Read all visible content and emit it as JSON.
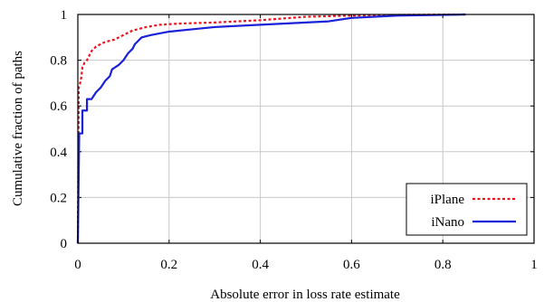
{
  "chart_data": {
    "type": "line",
    "title": "",
    "xlabel": "Absolute error in loss rate estimate",
    "ylabel": "Cumulative fraction of paths",
    "xlim": [
      0,
      1
    ],
    "ylim": [
      0,
      1
    ],
    "x_ticks": [
      "0",
      "0.2",
      "0.4",
      "0.6",
      "0.8",
      "1"
    ],
    "y_ticks": [
      "0",
      "0.2",
      "0.4",
      "0.6",
      "0.8",
      "1"
    ],
    "grid": true,
    "legend_position": "bottom-right",
    "series": [
      {
        "name": "iPlane",
        "color": "#e8141e",
        "style": "dashed",
        "points": [
          [
            0,
            0
          ],
          [
            0.002,
            0.68
          ],
          [
            0.005,
            0.7
          ],
          [
            0.008,
            0.73
          ],
          [
            0.01,
            0.77
          ],
          [
            0.015,
            0.79
          ],
          [
            0.02,
            0.8
          ],
          [
            0.025,
            0.82
          ],
          [
            0.03,
            0.84
          ],
          [
            0.04,
            0.86
          ],
          [
            0.05,
            0.87
          ],
          [
            0.06,
            0.88
          ],
          [
            0.08,
            0.89
          ],
          [
            0.1,
            0.91
          ],
          [
            0.12,
            0.93
          ],
          [
            0.15,
            0.945
          ],
          [
            0.18,
            0.955
          ],
          [
            0.22,
            0.96
          ],
          [
            0.3,
            0.965
          ],
          [
            0.4,
            0.975
          ],
          [
            0.5,
            0.99
          ],
          [
            0.6,
            0.995
          ],
          [
            0.7,
            0.998
          ],
          [
            0.85,
            1.0
          ]
        ]
      },
      {
        "name": "iNano",
        "color": "#1a21d8",
        "style": "solid",
        "points": [
          [
            0,
            0
          ],
          [
            0.003,
            0.48
          ],
          [
            0.01,
            0.48
          ],
          [
            0.01,
            0.58
          ],
          [
            0.02,
            0.58
          ],
          [
            0.02,
            0.63
          ],
          [
            0.03,
            0.63
          ],
          [
            0.04,
            0.66
          ],
          [
            0.05,
            0.68
          ],
          [
            0.06,
            0.71
          ],
          [
            0.07,
            0.73
          ],
          [
            0.075,
            0.76
          ],
          [
            0.09,
            0.78
          ],
          [
            0.1,
            0.8
          ],
          [
            0.11,
            0.83
          ],
          [
            0.12,
            0.85
          ],
          [
            0.125,
            0.87
          ],
          [
            0.13,
            0.88
          ],
          [
            0.14,
            0.9
          ],
          [
            0.16,
            0.91
          ],
          [
            0.2,
            0.925
          ],
          [
            0.25,
            0.935
          ],
          [
            0.3,
            0.945
          ],
          [
            0.4,
            0.955
          ],
          [
            0.55,
            0.97
          ],
          [
            0.6,
            0.985
          ],
          [
            0.7,
            0.995
          ],
          [
            0.85,
            1.0
          ]
        ]
      }
    ]
  }
}
